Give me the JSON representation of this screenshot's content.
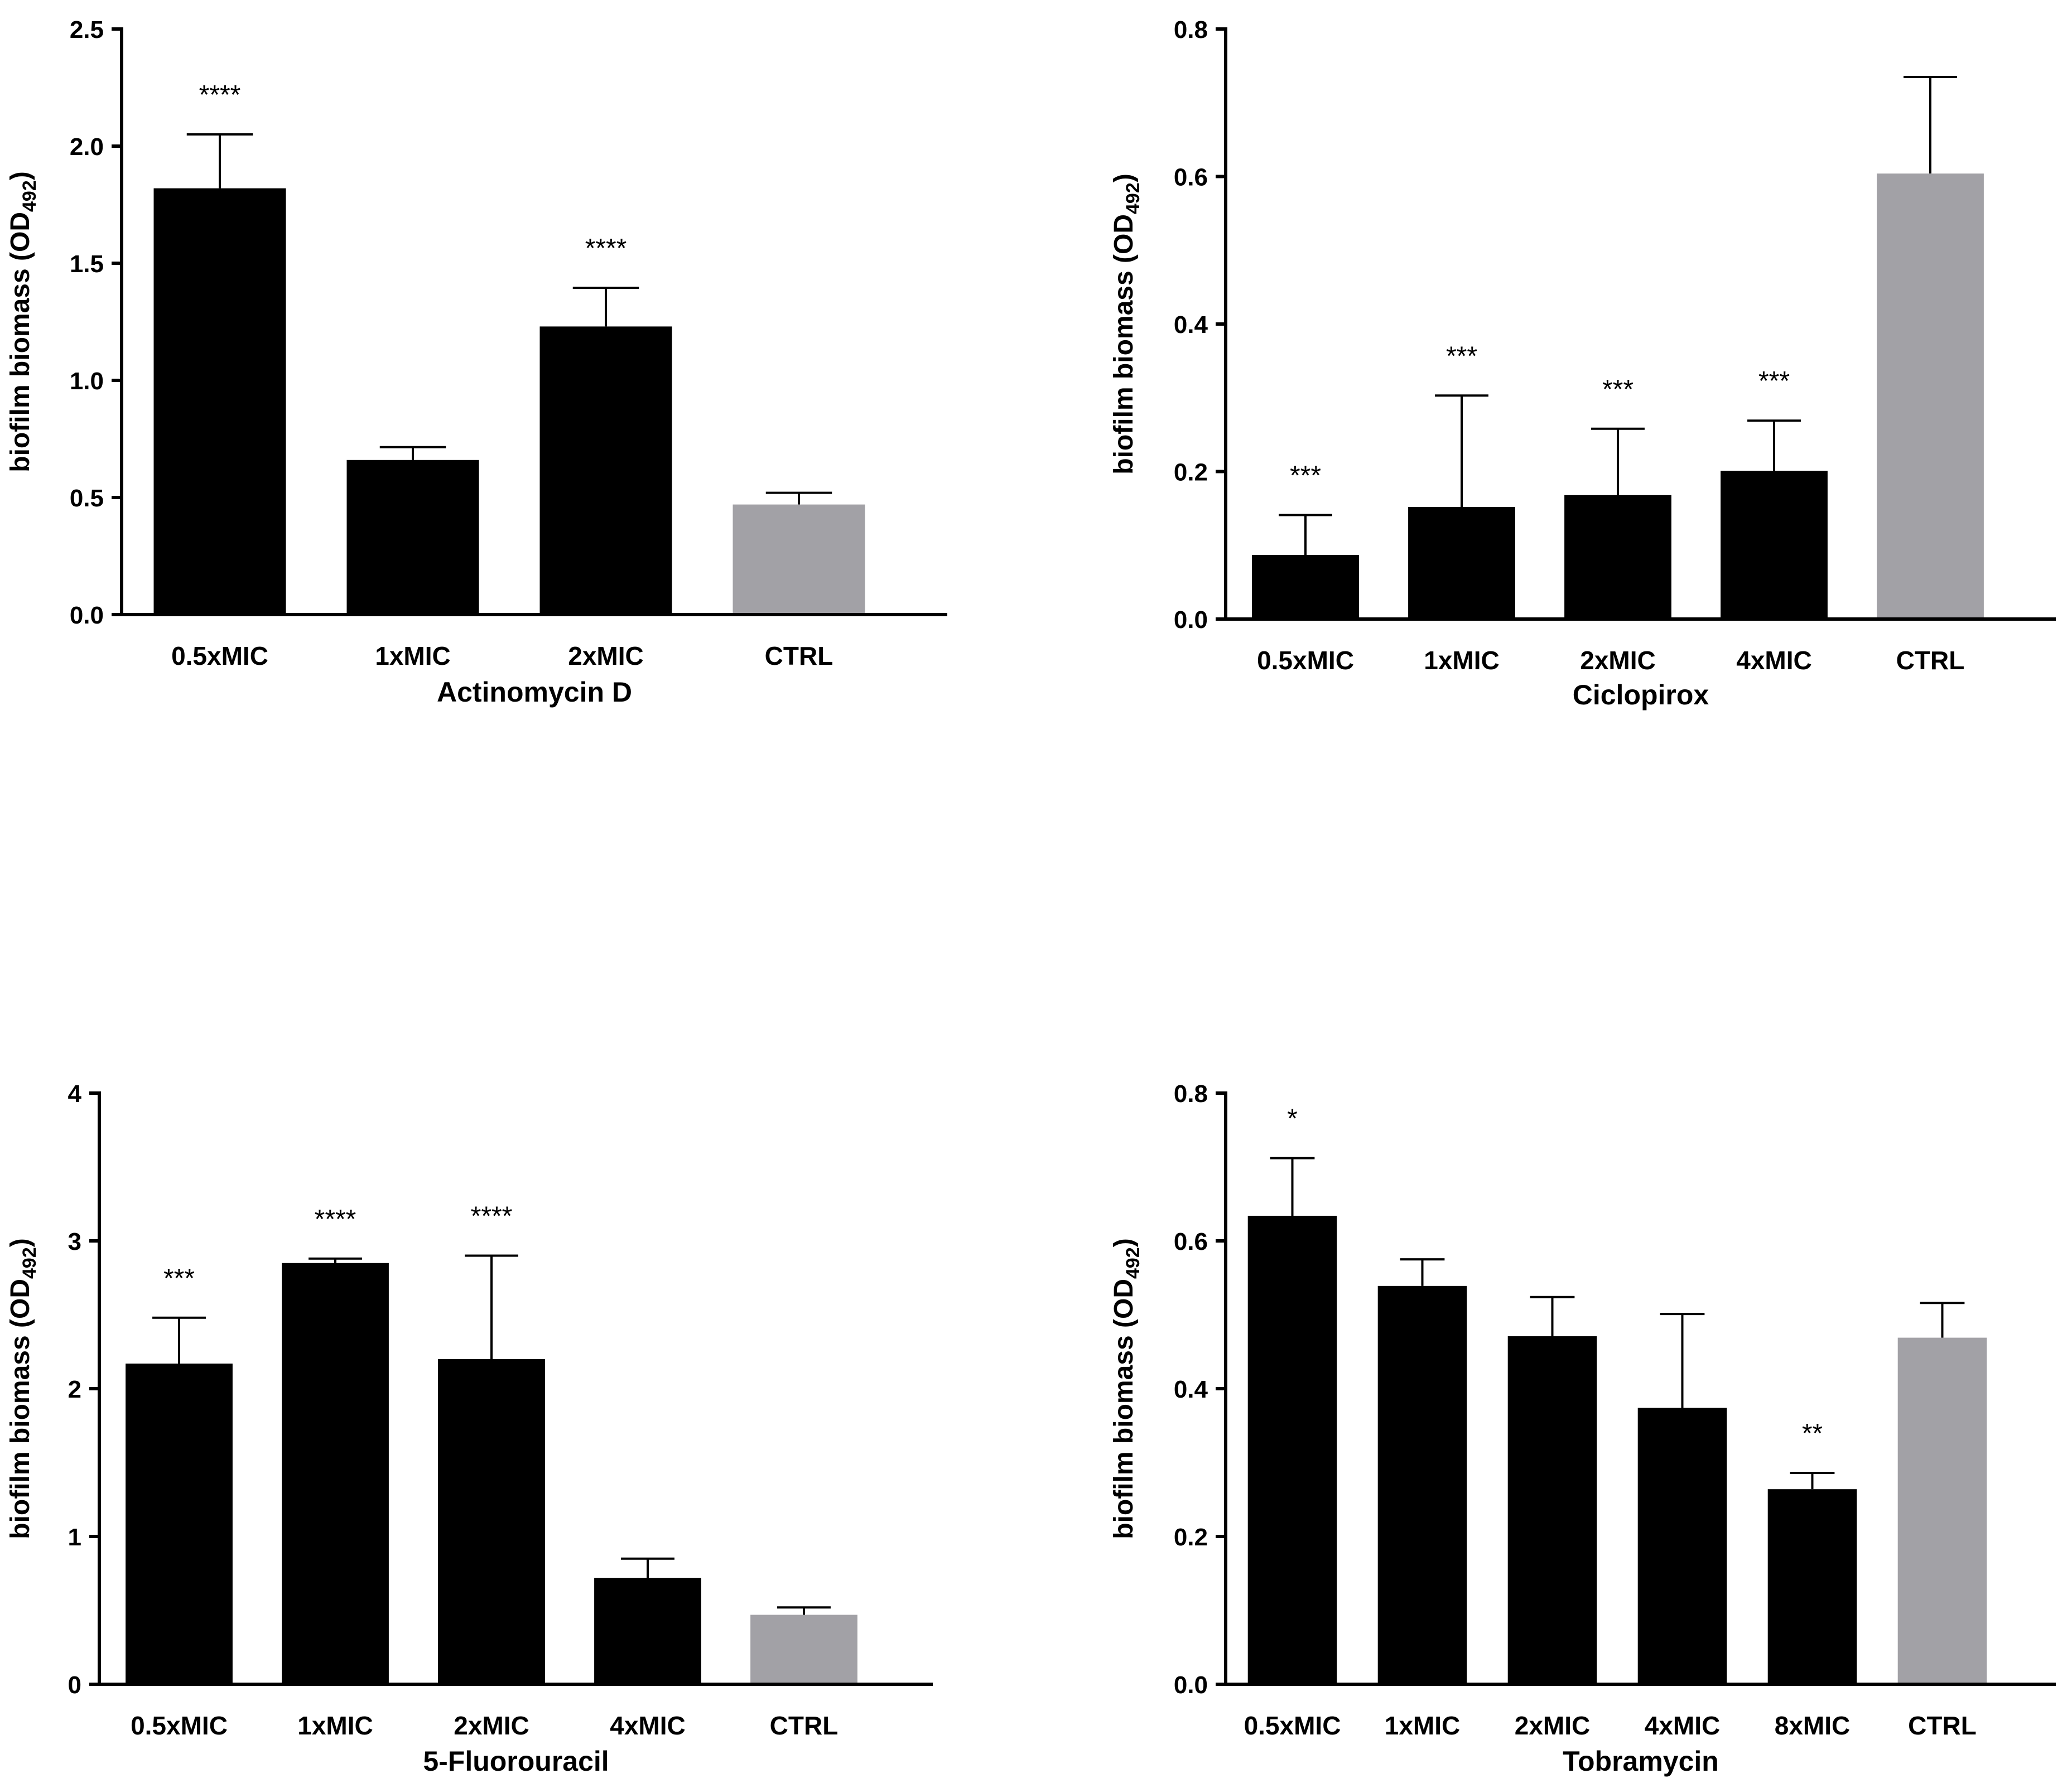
{
  "figure": {
    "panels": [
      {
        "id": "actinomycin",
        "chart_data": {
          "type": "bar",
          "title": "",
          "xlabel": "Actinomycin D",
          "ylabel": "biofilm biomass (OD",
          "ylabel_sub": "492",
          "ylabel_close": ")",
          "ylim": [
            0,
            2.5
          ],
          "yticks": [
            "0.0",
            "0.5",
            "1.0",
            "1.5",
            "2.0",
            "2.5"
          ],
          "categories": [
            "0.5xMIC",
            "1xMIC",
            "2xMIC",
            "CTRL"
          ],
          "values": [
            1.82,
            0.66,
            1.23,
            0.47
          ],
          "errors": [
            0.23,
            0.055,
            0.165,
            0.05
          ],
          "significance": [
            "****",
            "",
            "****",
            ""
          ],
          "colors": [
            "#000000",
            "#000000",
            "#000000",
            "#a2a1a6"
          ]
        }
      },
      {
        "id": "ciclopirox",
        "chart_data": {
          "type": "bar",
          "title": "",
          "xlabel": "Ciclopirox",
          "ylabel": "biofilm biomass (OD",
          "ylabel_sub": "492",
          "ylabel_close": ")",
          "ylim": [
            0,
            0.8
          ],
          "yticks": [
            "0.0",
            "0.2",
            "0.4",
            "0.6",
            "0.8"
          ],
          "categories": [
            "0.5xMIC",
            "1xMIC",
            "2xMIC",
            "4xMIC",
            "CTRL"
          ],
          "values": [
            0.087,
            0.152,
            0.168,
            0.201,
            0.604
          ],
          "errors": [
            0.054,
            0.151,
            0.09,
            0.068,
            0.131
          ],
          "significance": [
            "***",
            "***",
            "***",
            "***",
            ""
          ],
          "colors": [
            "#000000",
            "#000000",
            "#000000",
            "#000000",
            "#a2a1a6"
          ]
        }
      },
      {
        "id": "fluorouracil",
        "chart_data": {
          "type": "bar",
          "title": "",
          "xlabel": "5-Fluorouracil",
          "ylabel": "biofilm biomass (OD",
          "ylabel_sub": "492",
          "ylabel_close": ")",
          "ylim": [
            0,
            4
          ],
          "yticks": [
            "0",
            "1",
            "2",
            "3",
            "4"
          ],
          "categories": [
            "0.5xMIC",
            "1xMIC",
            "2xMIC",
            "4xMIC",
            "CTRL"
          ],
          "values": [
            2.17,
            2.85,
            2.2,
            0.72,
            0.47
          ],
          "errors": [
            0.31,
            0.03,
            0.7,
            0.13,
            0.05
          ],
          "significance": [
            "***",
            "****",
            "****",
            "",
            ""
          ],
          "colors": [
            "#000000",
            "#000000",
            "#000000",
            "#000000",
            "#a2a1a6"
          ]
        }
      },
      {
        "id": "tobramycin",
        "chart_data": {
          "type": "bar",
          "title": "",
          "xlabel": "Tobramycin",
          "ylabel": "biofilm biomass (OD",
          "ylabel_sub": "492",
          "ylabel_close": ")",
          "ylim": [
            0,
            0.8
          ],
          "yticks": [
            "0.0",
            "0.2",
            "0.4",
            "0.6",
            "0.8"
          ],
          "categories": [
            "0.5xMIC",
            "1xMIC",
            "2xMIC",
            "4xMIC",
            "8xMIC",
            "CTRL"
          ],
          "values": [
            0.634,
            0.539,
            0.471,
            0.374,
            0.264,
            0.469
          ],
          "errors": [
            0.078,
            0.036,
            0.053,
            0.127,
            0.022,
            0.047
          ],
          "significance": [
            "*",
            "",
            "",
            "",
            "**",
            ""
          ],
          "colors": [
            "#000000",
            "#000000",
            "#000000",
            "#000000",
            "#000000",
            "#a2a1a6"
          ]
        }
      }
    ]
  }
}
